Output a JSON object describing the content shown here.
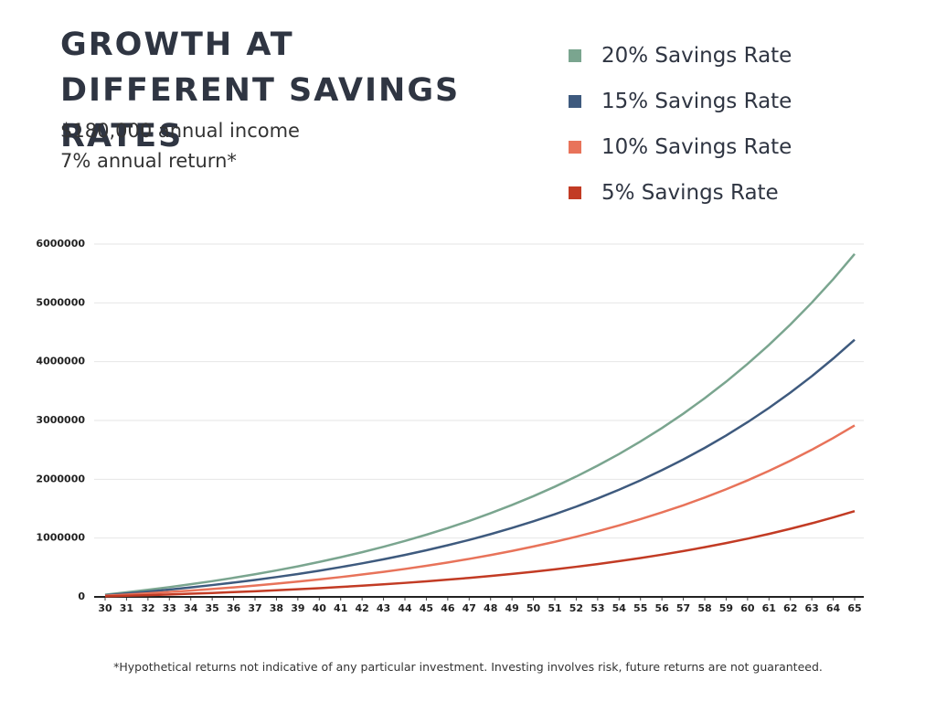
{
  "chart_data": {
    "type": "line",
    "title": "GROWTH AT DIFFERENT SAVINGS RATES",
    "subtitle": [
      "$180,000 annual income",
      "7% annual return*"
    ],
    "note": "*Hypothetical returns not indicative of any particular investment. Investing involves risk, future returns are not guaranteed.",
    "x": [
      30,
      31,
      32,
      33,
      34,
      35,
      36,
      37,
      38,
      39,
      40,
      41,
      42,
      43,
      44,
      45,
      46,
      47,
      48,
      49,
      50,
      51,
      52,
      53,
      54,
      55,
      56,
      57,
      58,
      59,
      60,
      61,
      62,
      63,
      64,
      65
    ],
    "xlim": [
      30,
      65
    ],
    "xticks": [
      30,
      31,
      32,
      33,
      34,
      35,
      36,
      37,
      38,
      39,
      40,
      41,
      42,
      43,
      44,
      45,
      46,
      47,
      48,
      49,
      50,
      51,
      52,
      53,
      54,
      55,
      56,
      57,
      58,
      59,
      60,
      61,
      62,
      63,
      64,
      65
    ],
    "ylim": [
      0,
      6000000
    ],
    "yticks": [
      0,
      1000000,
      2000000,
      3000000,
      4000000,
      5000000,
      6000000
    ],
    "grid": true,
    "series": [
      {
        "name": "20% Savings Rate",
        "color": "#7aa58f",
        "values": [
          37000,
          77000,
          120000,
          166000,
          215000,
          267000,
          324000,
          385000,
          450000,
          519000,
          594000,
          674000,
          760000,
          852000,
          951000,
          1057000,
          1170000,
          1292000,
          1423000,
          1563000,
          1713000,
          1874000,
          2047000,
          2232000,
          2430000,
          2643000,
          2871000,
          3116000,
          3379000,
          3660000,
          3962000,
          4285000,
          4632000,
          5004000,
          5403000,
          5831000
        ]
      },
      {
        "name": "15% Savings Rate",
        "color": "#3e5a7e",
        "values": [
          28000,
          58000,
          90000,
          124000,
          161000,
          201000,
          243000,
          288000,
          337000,
          389000,
          445000,
          506000,
          570000,
          639000,
          713000,
          793000,
          878000,
          969000,
          1067000,
          1172000,
          1285000,
          1406000,
          1535000,
          1674000,
          1823000,
          1982000,
          2154000,
          2337000,
          2534000,
          2745000,
          2971000,
          3214000,
          3474000,
          3753000,
          4053000,
          4373000
        ]
      },
      {
        "name": "10% Savings Rate",
        "color": "#e8735a",
        "values": [
          19000,
          39000,
          60000,
          83000,
          107000,
          134000,
          162000,
          192000,
          225000,
          260000,
          297000,
          337000,
          380000,
          426000,
          475000,
          528000,
          585000,
          646000,
          711000,
          781000,
          857000,
          937000,
          1023000,
          1116000,
          1215000,
          1322000,
          1436000,
          1558000,
          1689000,
          1830000,
          1981000,
          2143000,
          2316000,
          2502000,
          2702000,
          2916000
        ]
      },
      {
        "name": "5% Savings Rate",
        "color": "#c23b24",
        "values": [
          9000,
          19000,
          30000,
          41000,
          54000,
          67000,
          81000,
          96000,
          112000,
          130000,
          148000,
          169000,
          190000,
          213000,
          238000,
          264000,
          293000,
          323000,
          356000,
          391000,
          428000,
          469000,
          512000,
          558000,
          608000,
          661000,
          718000,
          779000,
          845000,
          915000,
          990000,
          1071000,
          1158000,
          1251000,
          1351000,
          1458000
        ]
      }
    ]
  }
}
